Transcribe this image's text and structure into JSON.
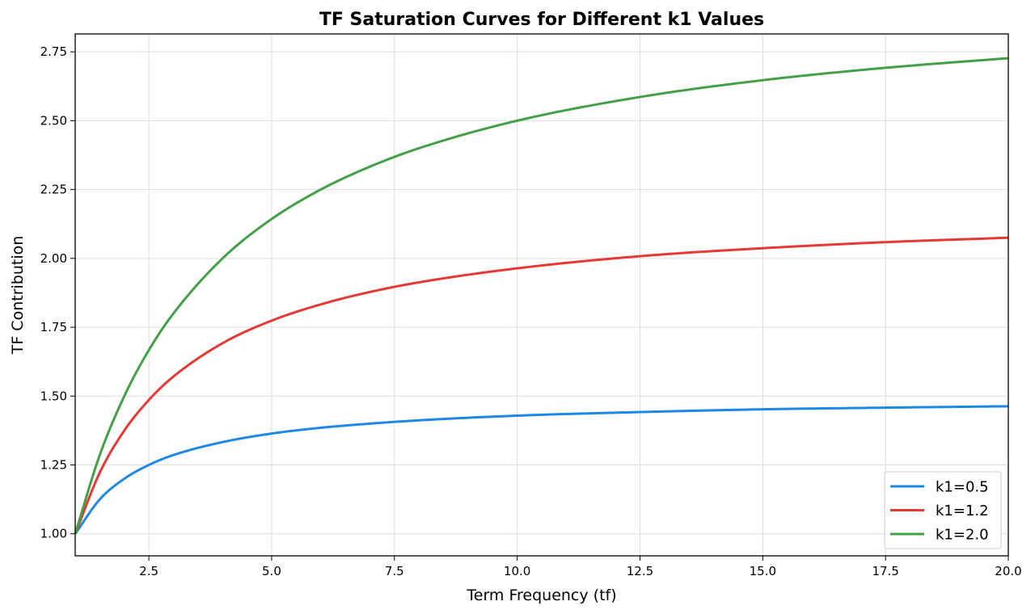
{
  "chart_data": {
    "type": "line",
    "title": "TF Saturation Curves for Different k1 Values",
    "xlabel": "Term Frequency (tf)",
    "ylabel": "TF Contribution",
    "xlim": [
      1,
      20
    ],
    "ylim": [
      0.92,
      2.815
    ],
    "xticks": [
      2.5,
      5.0,
      7.5,
      10.0,
      12.5,
      15.0,
      17.5,
      20.0
    ],
    "xtick_labels": [
      "2.5",
      "5.0",
      "7.5",
      "10.0",
      "12.5",
      "15.0",
      "17.5",
      "20.0"
    ],
    "yticks": [
      1.0,
      1.25,
      1.5,
      1.75,
      2.0,
      2.25,
      2.5,
      2.75
    ],
    "ytick_labels": [
      "1.00",
      "1.25",
      "1.50",
      "1.75",
      "2.00",
      "2.25",
      "2.50",
      "2.75"
    ],
    "grid": true,
    "legend_position": "bottom-right",
    "x": [
      1,
      1.5,
      2,
      2.5,
      3,
      4,
      5,
      6,
      7,
      8,
      10,
      12.5,
      15,
      17.5,
      20
    ],
    "series": [
      {
        "name": "k1=0.5",
        "color": "#1e88e5",
        "values": [
          1.0,
          1.125,
          1.2,
          1.25,
          1.286,
          1.333,
          1.364,
          1.385,
          1.4,
          1.412,
          1.429,
          1.442,
          1.452,
          1.458,
          1.463
        ]
      },
      {
        "name": "k1=1.2",
        "color": "#e53935",
        "values": [
          1.0,
          1.222,
          1.375,
          1.486,
          1.571,
          1.692,
          1.774,
          1.833,
          1.878,
          1.913,
          1.964,
          2.008,
          2.037,
          2.059,
          2.075
        ]
      },
      {
        "name": "k1=2.0",
        "color": "#43a047",
        "values": [
          1.0,
          1.286,
          1.5,
          1.667,
          1.8,
          2.0,
          2.143,
          2.25,
          2.333,
          2.4,
          2.5,
          2.586,
          2.647,
          2.692,
          2.727
        ]
      }
    ]
  }
}
